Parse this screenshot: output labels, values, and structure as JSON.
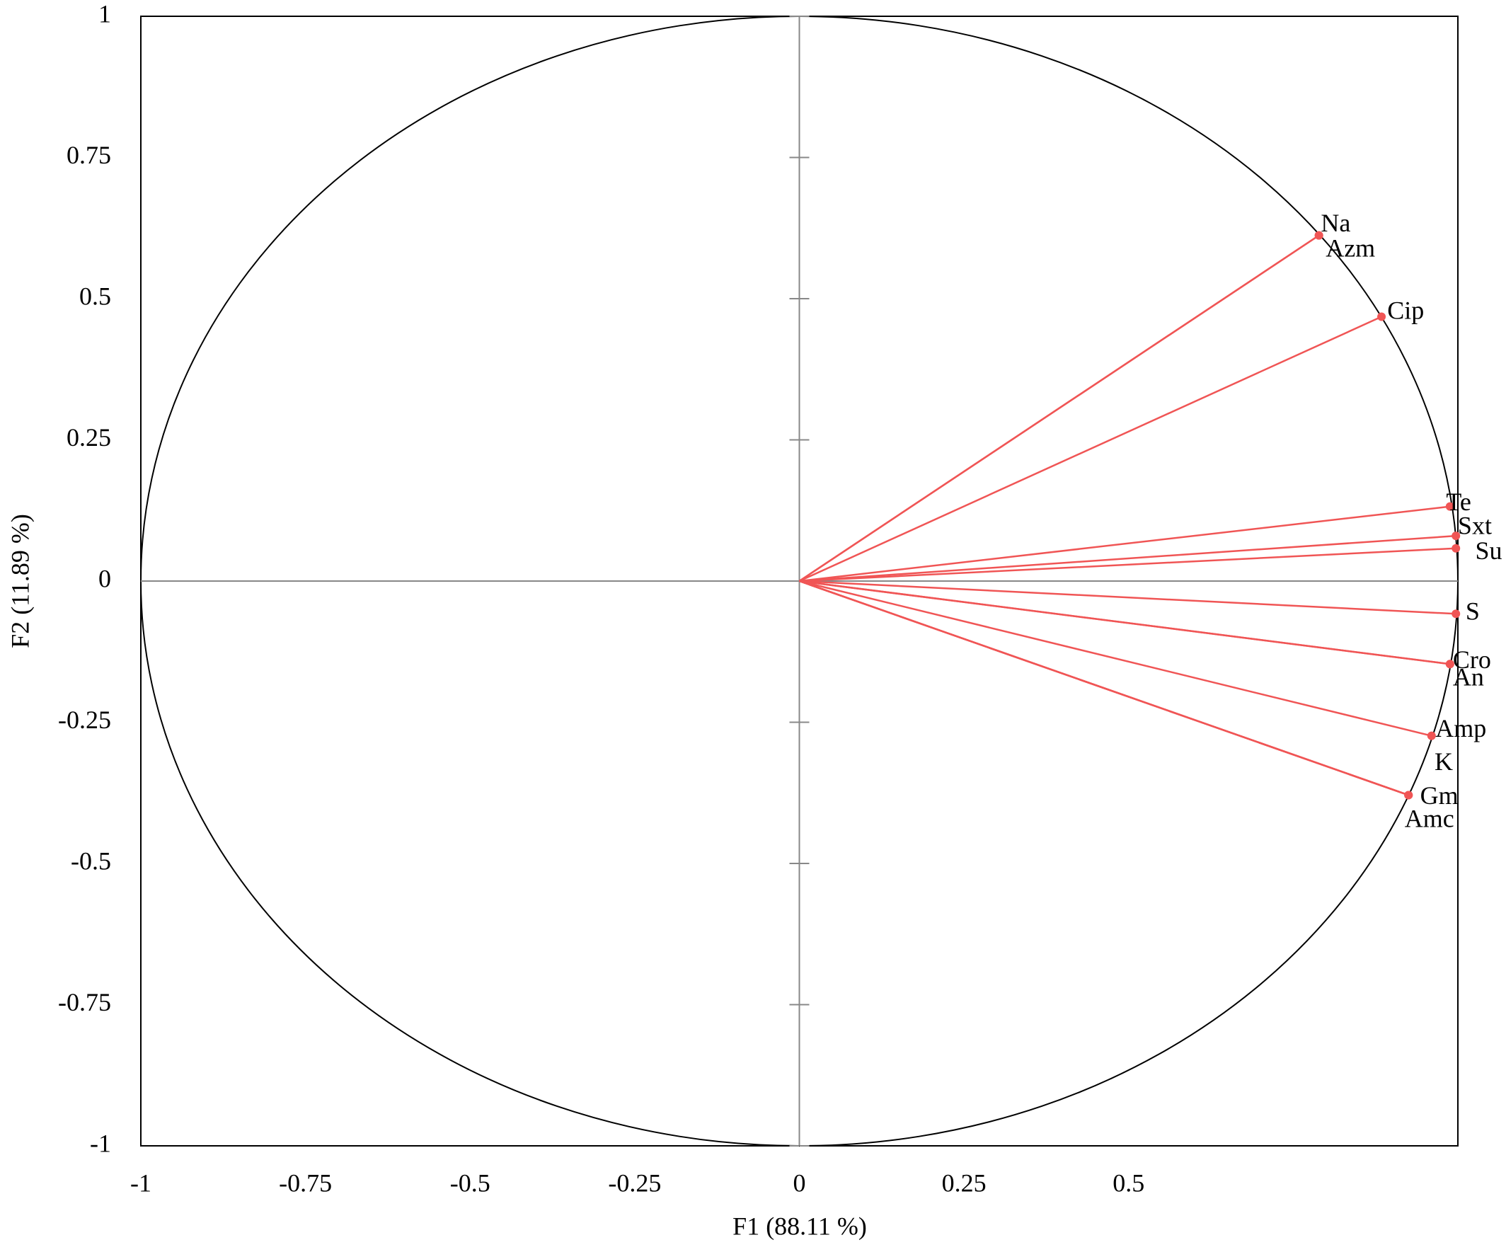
{
  "chart_data": {
    "type": "scatter",
    "x_label": "F1 (88.11  %)",
    "y_label": "F2 (11.89  %)",
    "labels": [
      "Na",
      "Azm",
      "Cip",
      "Te",
      "Sxt",
      "Su",
      "S",
      "Cro",
      "An",
      "Amp",
      "K",
      "Gm",
      "Amc"
    ],
    "x": [
      0.789,
      0.789,
      0.884,
      0.988,
      0.997,
      0.997,
      0.997,
      0.988,
      0.988,
      0.96,
      0.925,
      0.925,
      0.925
    ],
    "values": [
      0.612,
      0.612,
      0.468,
      0.132,
      0.08,
      0.058,
      -0.058,
      -0.147,
      -0.147,
      -0.274,
      -0.379,
      -0.379,
      -0.379
    ],
    "color": "#f05555",
    "xlim": [
      -1,
      1
    ],
    "ylim": [
      -1,
      1
    ],
    "xticks": [
      -1,
      -0.75,
      -0.5,
      -0.25,
      0,
      0.25,
      0.5
    ],
    "yticks": [
      -1,
      -0.75,
      -0.5,
      -0.25,
      0,
      0.25,
      0.5,
      0.75,
      1
    ]
  }
}
